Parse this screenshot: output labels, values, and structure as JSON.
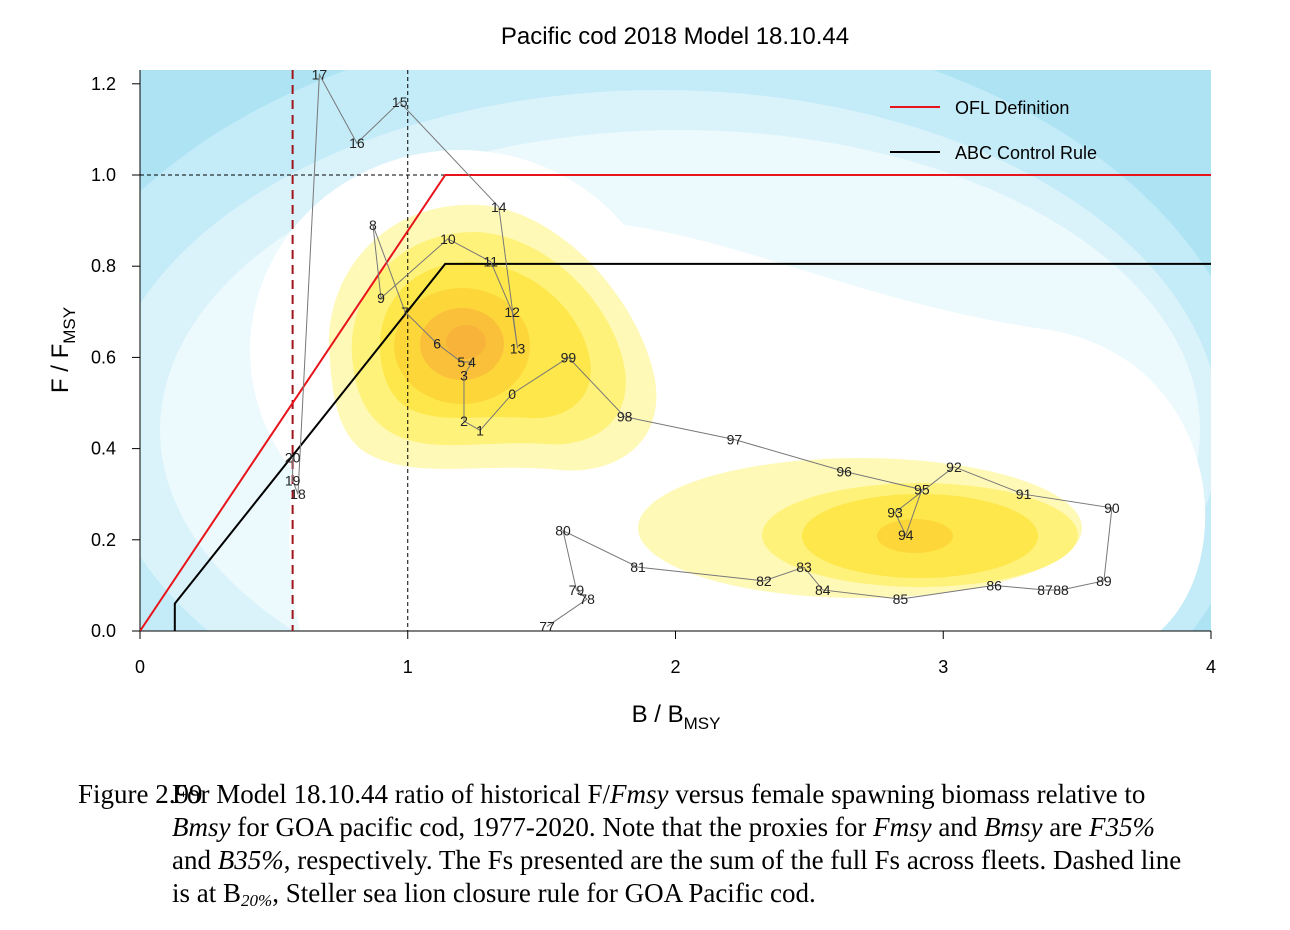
{
  "chart_data": {
    "type": "scatter",
    "title": "Pacific cod 2018 Model 18.10.44",
    "xlabel": "B / B",
    "xlabel_sub": "MSY",
    "ylabel": "F / F",
    "ylabel_sub": "MSY",
    "xlim": [
      0,
      4
    ],
    "ylim": [
      0,
      1.22
    ],
    "x_ticks": [
      "0",
      "1",
      "2",
      "3",
      "4"
    ],
    "y_ticks": [
      "0.0",
      "0.2",
      "0.4",
      "0.6",
      "0.8",
      "1.0",
      "1.2"
    ],
    "legend_position": "top-right",
    "legend": [
      {
        "label": "OFL Definition",
        "color": "#e8141c"
      },
      {
        "label": "ABC Control Rule",
        "color": "#000000"
      }
    ],
    "ofl_definition": [
      [
        0,
        0
      ],
      [
        1.14,
        1.0
      ],
      [
        4,
        1.0
      ]
    ],
    "abc_control_rule": [
      [
        0.13,
        0
      ],
      [
        0.13,
        0.06
      ],
      [
        1.14,
        0.805
      ],
      [
        4,
        0.805
      ]
    ],
    "reference_lines": {
      "b20_vertical_x": 0.57,
      "vertical_dotted_x": 1.0,
      "horizontal_dotted_y": 1.0
    },
    "points": [
      {
        "label": "77",
        "x": 1.52,
        "y": 0.01
      },
      {
        "label": "78",
        "x": 1.67,
        "y": 0.07
      },
      {
        "label": "79",
        "x": 1.63,
        "y": 0.09
      },
      {
        "label": "80",
        "x": 1.58,
        "y": 0.22
      },
      {
        "label": "81",
        "x": 1.86,
        "y": 0.14
      },
      {
        "label": "82",
        "x": 2.33,
        "y": 0.11
      },
      {
        "label": "83",
        "x": 2.48,
        "y": 0.14
      },
      {
        "label": "84",
        "x": 2.55,
        "y": 0.09
      },
      {
        "label": "85",
        "x": 2.84,
        "y": 0.07
      },
      {
        "label": "86",
        "x": 3.19,
        "y": 0.1
      },
      {
        "label": "87",
        "x": 3.38,
        "y": 0.09
      },
      {
        "label": "88",
        "x": 3.44,
        "y": 0.09
      },
      {
        "label": "89",
        "x": 3.6,
        "y": 0.11
      },
      {
        "label": "90",
        "x": 3.63,
        "y": 0.27
      },
      {
        "label": "91",
        "x": 3.3,
        "y": 0.3
      },
      {
        "label": "92",
        "x": 3.04,
        "y": 0.36
      },
      {
        "label": "93",
        "x": 2.82,
        "y": 0.26
      },
      {
        "label": "94",
        "x": 2.86,
        "y": 0.21
      },
      {
        "label": "95",
        "x": 2.92,
        "y": 0.31
      },
      {
        "label": "96",
        "x": 2.63,
        "y": 0.35
      },
      {
        "label": "97",
        "x": 2.22,
        "y": 0.42
      },
      {
        "label": "98",
        "x": 1.81,
        "y": 0.47
      },
      {
        "label": "99",
        "x": 1.6,
        "y": 0.6
      },
      {
        "label": "0",
        "x": 1.39,
        "y": 0.52
      },
      {
        "label": "1",
        "x": 1.27,
        "y": 0.44
      },
      {
        "label": "2",
        "x": 1.21,
        "y": 0.46
      },
      {
        "label": "3",
        "x": 1.21,
        "y": 0.56
      },
      {
        "label": "4",
        "x": 1.24,
        "y": 0.59
      },
      {
        "label": "5",
        "x": 1.2,
        "y": 0.59
      },
      {
        "label": "6",
        "x": 1.11,
        "y": 0.63
      },
      {
        "label": "7",
        "x": 0.99,
        "y": 0.7
      },
      {
        "label": "8",
        "x": 0.87,
        "y": 0.89
      },
      {
        "label": "9",
        "x": 0.9,
        "y": 0.73
      },
      {
        "label": "10",
        "x": 1.15,
        "y": 0.86
      },
      {
        "label": "11",
        "x": 1.31,
        "y": 0.81
      },
      {
        "label": "12",
        "x": 1.39,
        "y": 0.7
      },
      {
        "label": "13",
        "x": 1.41,
        "y": 0.62
      },
      {
        "label": "14",
        "x": 1.34,
        "y": 0.93
      },
      {
        "label": "15",
        "x": 0.97,
        "y": 1.16
      },
      {
        "label": "16",
        "x": 0.81,
        "y": 1.07
      },
      {
        "label": "17",
        "x": 0.67,
        "y": 1.22
      },
      {
        "label": "18",
        "x": 0.59,
        "y": 0.3
      },
      {
        "label": "19",
        "x": 0.57,
        "y": 0.33
      },
      {
        "label": "20",
        "x": 0.57,
        "y": 0.38
      }
    ]
  },
  "caption": {
    "lead": "Figure 2.99",
    "line1_a": "For Model 18.10.44 ratio of historical F/",
    "line1_b": "Fmsy",
    "line1_c": " versus female spawning biomass relative to",
    "line2_a": "Bmsy",
    "line2_b": " for GOA pacific cod, 1977-2020. Note that the proxies for ",
    "line2_c": "Fmsy",
    "line2_d": " and ",
    "line2_e": "Bmsy",
    "line2_f": " are ",
    "line2_g": "F35%",
    "line3_a": "and ",
    "line3_b": "B35%",
    "line3_c": ", respectively. The Fs presented are the sum of the full Fs across fleets. Dashed line",
    "line4_a": "is at B",
    "line4_b": "20%",
    "line4_c": ", Steller sea lion closure rule for GOA Pacific cod."
  }
}
